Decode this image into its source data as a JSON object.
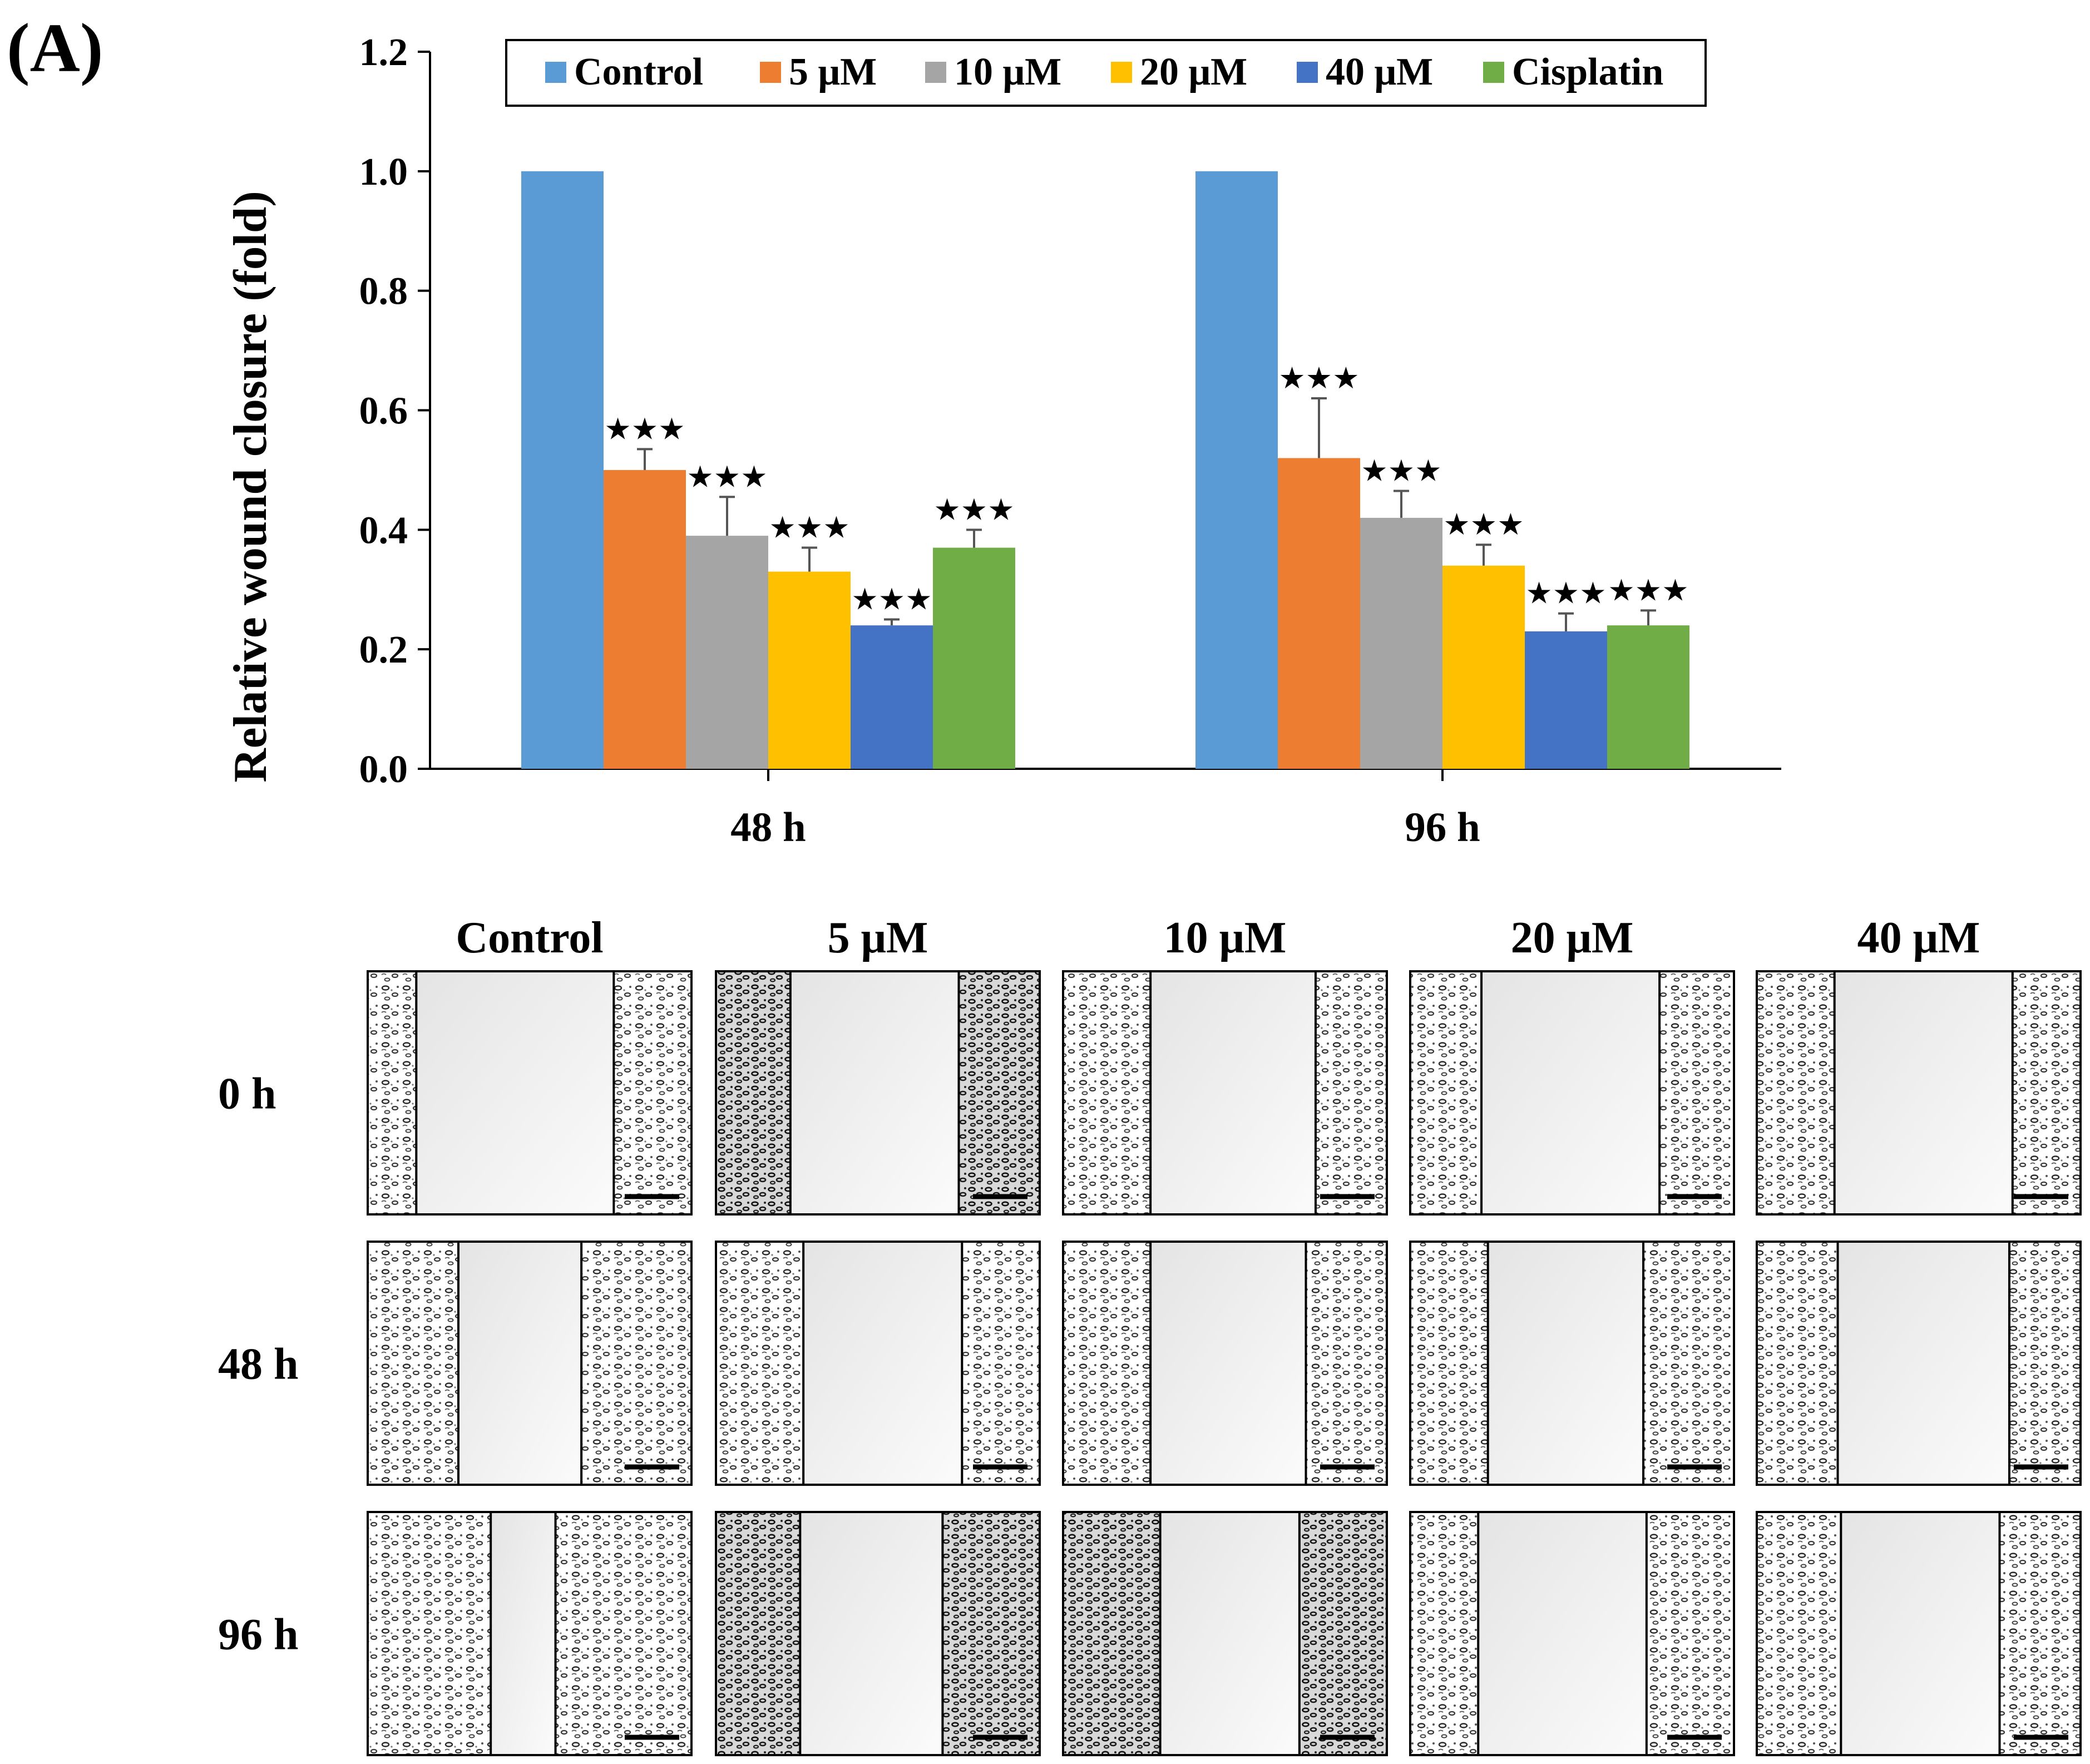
{
  "panel_label": "(A)",
  "chart_data": {
    "type": "bar",
    "ylabel": "Relative wound closure (fold)",
    "xlabel": "",
    "ylim": [
      0,
      1.2
    ],
    "yticks": [
      "0.0",
      "0.2",
      "0.4",
      "0.6",
      "0.8",
      "1.0",
      "1.2"
    ],
    "ytick_values": [
      0,
      0.2,
      0.4,
      0.6,
      0.8,
      1.0,
      1.2
    ],
    "categories": [
      "48 h",
      "96 h"
    ],
    "legend_position": "top",
    "grid": false,
    "significance_marker": "★★★",
    "series": [
      {
        "name": "Control",
        "color": "#5B9BD5",
        "values": [
          1.0,
          1.0
        ],
        "errors": [
          0,
          0
        ],
        "significant": [
          false,
          false
        ]
      },
      {
        "name": "5 μM",
        "color": "#ED7D31",
        "values": [
          0.5,
          0.52
        ],
        "errors": [
          0.035,
          0.1
        ],
        "significant": [
          true,
          true
        ]
      },
      {
        "name": "10 μM",
        "color": "#A5A5A5",
        "values": [
          0.39,
          0.42
        ],
        "errors": [
          0.065,
          0.045
        ],
        "significant": [
          true,
          true
        ]
      },
      {
        "name": "20 μM",
        "color": "#FFC000",
        "values": [
          0.33,
          0.34
        ],
        "errors": [
          0.04,
          0.035
        ],
        "significant": [
          true,
          true
        ]
      },
      {
        "name": "40 μM",
        "color": "#4472C4",
        "values": [
          0.24,
          0.23
        ],
        "errors": [
          0.01,
          0.03
        ],
        "significant": [
          true,
          true
        ]
      },
      {
        "name": "Cisplatin",
        "color": "#70AD47",
        "values": [
          0.37,
          0.24
        ],
        "errors": [
          0.03,
          0.025
        ],
        "significant": [
          true,
          true
        ]
      }
    ]
  },
  "micrographs": {
    "column_headers": [
      "Control",
      "5 μM",
      "10 μM",
      "20 μM",
      "40 μM"
    ],
    "row_labels": [
      "0 h",
      "48 h",
      "96 h"
    ]
  }
}
